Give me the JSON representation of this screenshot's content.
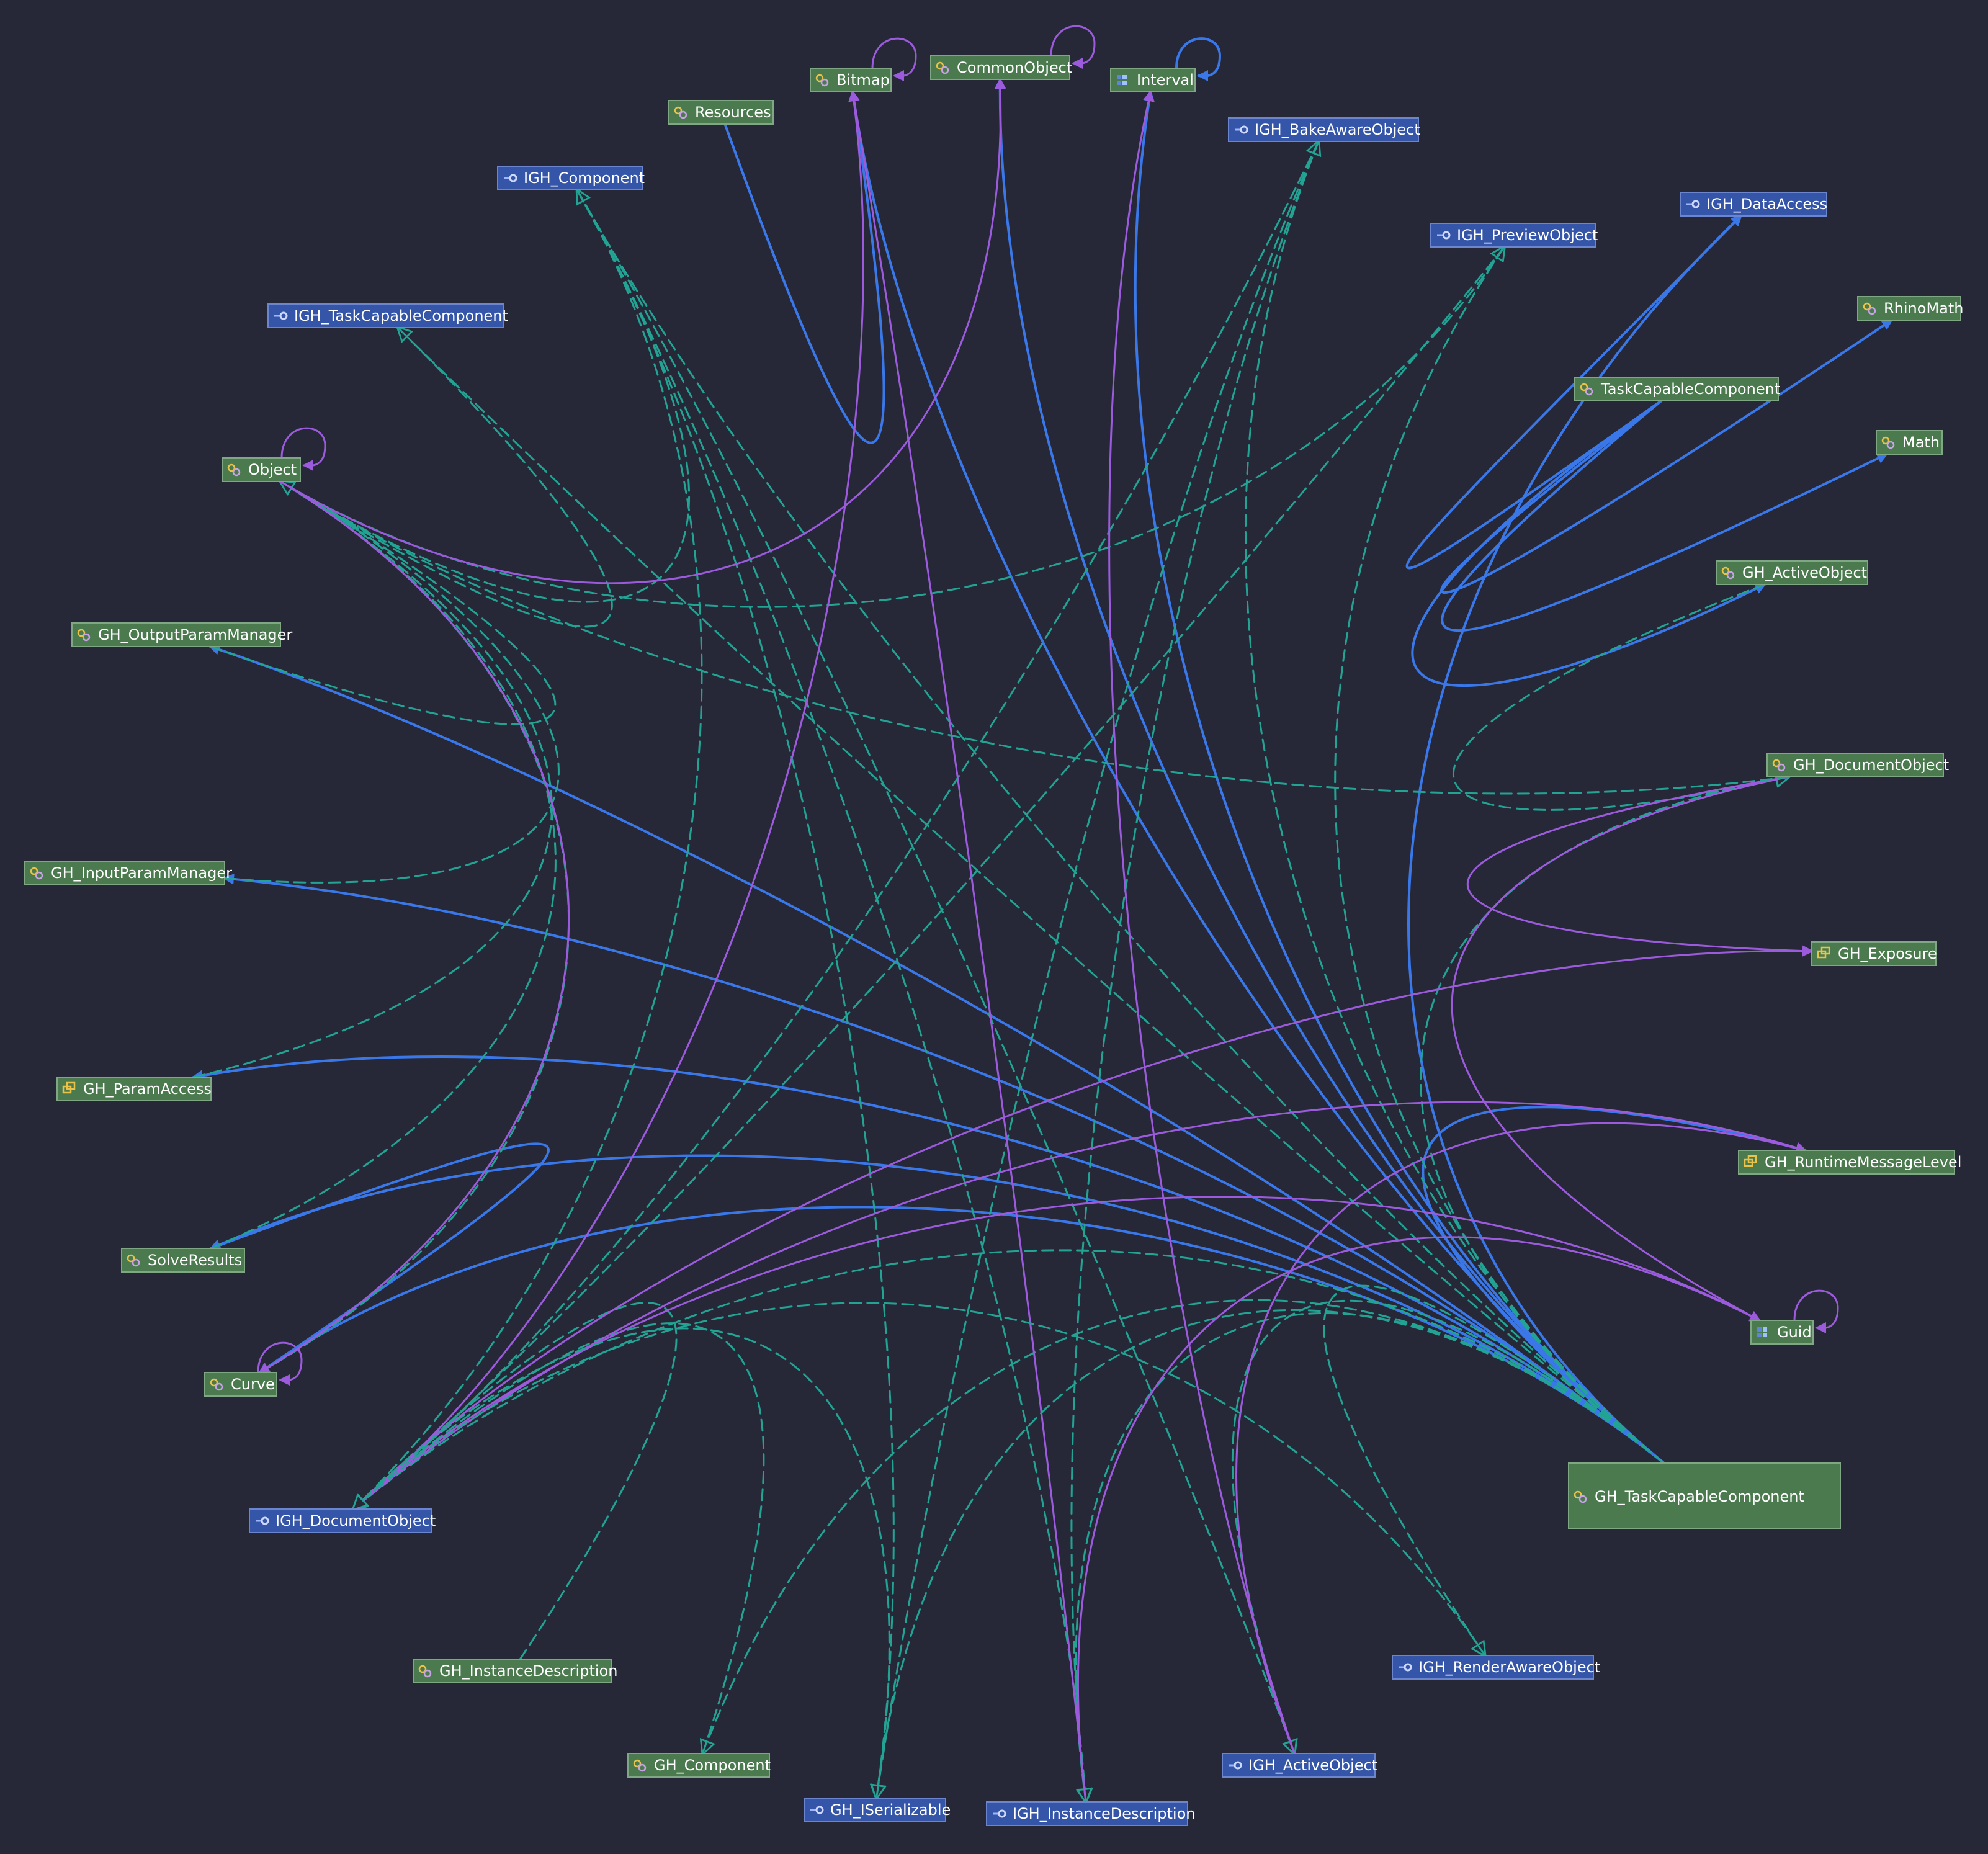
{
  "colors": {
    "background": "#262837",
    "implements_edge": "#22a394",
    "association_edge": "#3a78ea",
    "dependency_edge": "#9b5bdc",
    "class_fill": "#4c7a4f",
    "interface_fill": "#3556a8"
  },
  "nodes": [
    {
      "id": "Bitmap",
      "label": "Bitmap",
      "kind": "class",
      "icon": "class-icon"
    },
    {
      "id": "CommonObject",
      "label": "CommonObject",
      "kind": "class",
      "icon": "class-icon"
    },
    {
      "id": "Interval",
      "label": "Interval",
      "kind": "struct",
      "icon": "struct-icon"
    },
    {
      "id": "Resources",
      "label": "Resources",
      "kind": "class",
      "icon": "class-icon"
    },
    {
      "id": "IGH_BakeAwareObject",
      "label": "IGH_BakeAwareObject",
      "kind": "interface",
      "icon": "interface-icon"
    },
    {
      "id": "IGH_Component",
      "label": "IGH_Component",
      "kind": "interface",
      "icon": "interface-icon"
    },
    {
      "id": "IGH_DataAccess",
      "label": "IGH_DataAccess",
      "kind": "interface",
      "icon": "interface-icon"
    },
    {
      "id": "IGH_PreviewObject",
      "label": "IGH_PreviewObject",
      "kind": "interface",
      "icon": "interface-icon"
    },
    {
      "id": "IGH_TaskCapableComponent",
      "label": "IGH_TaskCapableComponent",
      "kind": "interface",
      "icon": "interface-icon"
    },
    {
      "id": "RhinoMath",
      "label": "RhinoMath",
      "kind": "class",
      "icon": "class-icon"
    },
    {
      "id": "TaskCapableComponent",
      "label": "TaskCapableComponent",
      "kind": "class",
      "icon": "class-icon"
    },
    {
      "id": "Math",
      "label": "Math",
      "kind": "class",
      "icon": "class-icon"
    },
    {
      "id": "Object",
      "label": "Object",
      "kind": "class",
      "icon": "class-icon"
    },
    {
      "id": "GH_ActiveObject",
      "label": "GH_ActiveObject",
      "kind": "class",
      "icon": "class-icon"
    },
    {
      "id": "GH_OutputParamManager",
      "label": "GH_OutputParamManager",
      "kind": "class",
      "icon": "class-icon"
    },
    {
      "id": "GH_DocumentObject",
      "label": "GH_DocumentObject",
      "kind": "class",
      "icon": "class-icon"
    },
    {
      "id": "GH_InputParamManager",
      "label": "GH_InputParamManager",
      "kind": "class",
      "icon": "class-icon"
    },
    {
      "id": "GH_Exposure",
      "label": "GH_Exposure",
      "kind": "enum",
      "icon": "enum-icon"
    },
    {
      "id": "GH_ParamAccess",
      "label": "GH_ParamAccess",
      "kind": "enum",
      "icon": "enum-icon"
    },
    {
      "id": "GH_RuntimeMessageLevel",
      "label": "GH_RuntimeMessageLevel",
      "kind": "enum",
      "icon": "enum-icon"
    },
    {
      "id": "SolveResults",
      "label": "SolveResults",
      "kind": "class",
      "icon": "class-icon"
    },
    {
      "id": "Guid",
      "label": "Guid",
      "kind": "struct",
      "icon": "struct-icon"
    },
    {
      "id": "Curve",
      "label": "Curve",
      "kind": "class",
      "icon": "class-icon"
    },
    {
      "id": "GH_TaskCapableComponent",
      "label": "GH_TaskCapableComponent",
      "kind": "class",
      "icon": "class-icon"
    },
    {
      "id": "IGH_DocumentObject",
      "label": "IGH_DocumentObject",
      "kind": "interface",
      "icon": "interface-icon"
    },
    {
      "id": "IGH_RenderAwareObject",
      "label": "IGH_RenderAwareObject",
      "kind": "interface",
      "icon": "interface-icon"
    },
    {
      "id": "GH_InstanceDescription",
      "label": "GH_InstanceDescription",
      "kind": "class",
      "icon": "class-icon"
    },
    {
      "id": "GH_Component",
      "label": "GH_Component",
      "kind": "class",
      "icon": "class-icon"
    },
    {
      "id": "IGH_ActiveObject",
      "label": "IGH_ActiveObject",
      "kind": "interface",
      "icon": "interface-icon"
    },
    {
      "id": "IGH_ISerializable",
      "label": "GH_ISerializable",
      "kind": "interface",
      "icon": "interface-icon"
    },
    {
      "id": "IGH_InstanceDescription",
      "label": "IGH_InstanceDescription",
      "kind": "interface",
      "icon": "interface-icon"
    }
  ],
  "edges": [
    {
      "from": "Object",
      "to": "Object",
      "type": "dependency"
    },
    {
      "from": "Bitmap",
      "to": "Bitmap",
      "type": "dependency"
    },
    {
      "from": "CommonObject",
      "to": "CommonObject",
      "type": "dependency"
    },
    {
      "from": "Interval",
      "to": "Interval",
      "type": "association"
    },
    {
      "from": "Curve",
      "to": "Curve",
      "type": "dependency"
    },
    {
      "from": "Guid",
      "to": "Guid",
      "type": "dependency"
    },
    {
      "from": "Resources",
      "to": "Bitmap",
      "type": "association"
    },
    {
      "from": "TaskCapableComponent",
      "to": "IGH_DataAccess",
      "type": "association"
    },
    {
      "from": "TaskCapableComponent",
      "to": "RhinoMath",
      "type": "association"
    },
    {
      "from": "TaskCapableComponent",
      "to": "Math",
      "type": "association"
    },
    {
      "from": "TaskCapableComponent",
      "to": "GH_ActiveObject",
      "type": "association"
    },
    {
      "from": "GH_TaskCapableComponent",
      "to": "IGH_DataAccess",
      "type": "association"
    },
    {
      "from": "GH_TaskCapableComponent",
      "to": "GH_OutputParamManager",
      "type": "association"
    },
    {
      "from": "GH_TaskCapableComponent",
      "to": "GH_InputParamManager",
      "type": "association"
    },
    {
      "from": "GH_TaskCapableComponent",
      "to": "GH_ParamAccess",
      "type": "association"
    },
    {
      "from": "GH_TaskCapableComponent",
      "to": "SolveResults",
      "type": "association"
    },
    {
      "from": "GH_TaskCapableComponent",
      "to": "Curve",
      "type": "association"
    },
    {
      "from": "GH_TaskCapableComponent",
      "to": "Interval",
      "type": "association"
    },
    {
      "from": "GH_TaskCapableComponent",
      "to": "CommonObject",
      "type": "association"
    },
    {
      "from": "GH_TaskCapableComponent",
      "to": "Bitmap",
      "type": "association"
    },
    {
      "from": "GH_TaskCapableComponent",
      "to": "GH_RuntimeMessageLevel",
      "type": "association"
    },
    {
      "from": "GH_TaskCapableComponent",
      "to": "IGH_TaskCapableComponent",
      "type": "implements"
    },
    {
      "from": "GH_TaskCapableComponent",
      "to": "IGH_Component",
      "type": "implements"
    },
    {
      "from": "GH_TaskCapableComponent",
      "to": "IGH_PreviewObject",
      "type": "implements"
    },
    {
      "from": "GH_TaskCapableComponent",
      "to": "IGH_BakeAwareObject",
      "type": "implements"
    },
    {
      "from": "GH_TaskCapableComponent",
      "to": "IGH_RenderAwareObject",
      "type": "implements"
    },
    {
      "from": "GH_TaskCapableComponent",
      "to": "IGH_DocumentObject",
      "type": "implements"
    },
    {
      "from": "GH_TaskCapableComponent",
      "to": "IGH_ActiveObject",
      "type": "implements"
    },
    {
      "from": "GH_TaskCapableComponent",
      "to": "IGH_ISerializable",
      "type": "implements"
    },
    {
      "from": "GH_TaskCapableComponent",
      "to": "IGH_InstanceDescription",
      "type": "implements"
    },
    {
      "from": "GH_TaskCapableComponent",
      "to": "GH_Component",
      "type": "implements"
    },
    {
      "from": "GH_TaskCapableComponent",
      "to": "GH_DocumentObject",
      "type": "implements"
    },
    {
      "from": "SolveResults",
      "to": "Curve",
      "type": "association"
    },
    {
      "from": "IGH_TaskCapableComponent",
      "to": "Object",
      "type": "implements"
    },
    {
      "from": "IGH_Component",
      "to": "Object",
      "type": "implements"
    },
    {
      "from": "IGH_Component",
      "to": "IGH_ActiveObject",
      "type": "implements"
    },
    {
      "from": "IGH_Component",
      "to": "IGH_InstanceDescription",
      "type": "implements"
    },
    {
      "from": "IGH_Component",
      "to": "IGH_ISerializable",
      "type": "implements"
    },
    {
      "from": "IGH_Component",
      "to": "IGH_DocumentObject",
      "type": "implements"
    },
    {
      "from": "IGH_BakeAwareObject",
      "to": "IGH_DocumentObject",
      "type": "implements"
    },
    {
      "from": "IGH_BakeAwareObject",
      "to": "IGH_ISerializable",
      "type": "implements"
    },
    {
      "from": "IGH_BakeAwareObject",
      "to": "IGH_InstanceDescription",
      "type": "implements"
    },
    {
      "from": "IGH_PreviewObject",
      "to": "Object",
      "type": "implements"
    },
    {
      "from": "IGH_PreviewObject",
      "to": "IGH_DocumentObject",
      "type": "implements"
    },
    {
      "from": "GH_OutputParamManager",
      "to": "Object",
      "type": "implements"
    },
    {
      "from": "GH_InputParamManager",
      "to": "Object",
      "type": "implements"
    },
    {
      "from": "GH_ParamAccess",
      "to": "Object",
      "type": "implements"
    },
    {
      "from": "SolveResults",
      "to": "Object",
      "type": "implements"
    },
    {
      "from": "Curve",
      "to": "Object",
      "type": "implements"
    },
    {
      "from": "GH_ActiveObject",
      "to": "GH_DocumentObject",
      "type": "implements"
    },
    {
      "from": "GH_DocumentObject",
      "to": "GH_Exposure",
      "type": "dependency"
    },
    {
      "from": "GH_DocumentObject",
      "to": "Guid",
      "type": "dependency"
    },
    {
      "from": "GH_DocumentObject",
      "to": "Object",
      "type": "implements"
    },
    {
      "from": "GH_Component",
      "to": "IGH_DocumentObject",
      "type": "implements"
    },
    {
      "from": "GH_InstanceDescription",
      "to": "IGH_DocumentObject",
      "type": "implements"
    },
    {
      "from": "IGH_DocumentObject",
      "to": "Bitmap",
      "type": "dependency"
    },
    {
      "from": "IGH_DocumentObject",
      "to": "GH_Exposure",
      "type": "dependency"
    },
    {
      "from": "IGH_DocumentObject",
      "to": "Guid",
      "type": "dependency"
    },
    {
      "from": "IGH_DocumentObject",
      "to": "GH_RuntimeMessageLevel",
      "type": "dependency"
    },
    {
      "from": "IGH_InstanceDescription",
      "to": "Guid",
      "type": "dependency"
    },
    {
      "from": "IGH_InstanceDescription",
      "to": "Bitmap",
      "type": "dependency"
    },
    {
      "from": "IGH_ActiveObject",
      "to": "Interval",
      "type": "dependency"
    },
    {
      "from": "IGH_ActiveObject",
      "to": "GH_RuntimeMessageLevel",
      "type": "dependency"
    },
    {
      "from": "IGH_RenderAwareObject",
      "to": "IGH_DocumentObject",
      "type": "implements"
    },
    {
      "from": "IGH_ISerializable",
      "to": "IGH_DocumentObject",
      "type": "implements"
    },
    {
      "from": "Object",
      "to": "CommonObject",
      "type": "dependency"
    },
    {
      "from": "Object",
      "to": "Curve",
      "type": "dependency"
    }
  ]
}
